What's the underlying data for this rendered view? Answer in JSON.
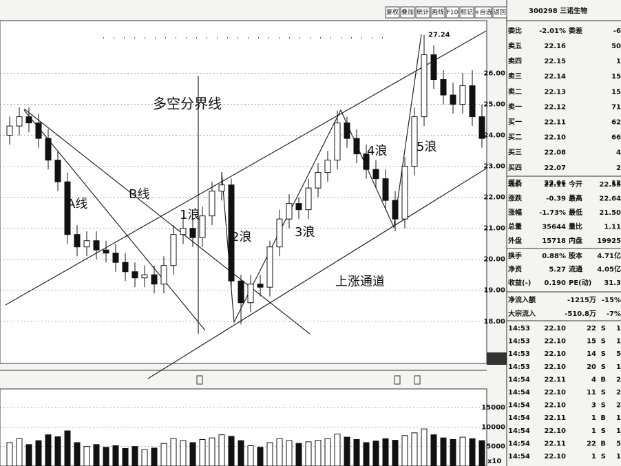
{
  "toolbar": [
    "复权",
    "叠加",
    "统计",
    "画线",
    "F10",
    "标记",
    "+自选",
    "返回"
  ],
  "chart_data": {
    "type": "candlestick",
    "open": [
      24.0,
      24.3,
      24.6,
      24.4,
      23.9,
      23.2,
      22.5,
      20.8,
      20.4,
      20.6,
      20.3,
      20.2,
      19.9,
      19.6,
      19.4,
      19.5,
      19.2,
      19.8,
      20.8,
      21.0,
      20.7,
      21.4,
      22.2,
      22.4,
      19.3,
      18.6,
      19.2,
      19.1,
      20.4,
      21.3,
      21.8,
      21.6,
      22.3,
      22.8,
      23.2,
      24.4,
      23.9,
      23.4,
      22.9,
      22.6,
      21.9,
      21.3,
      23.0,
      24.6,
      26.6,
      25.8,
      25.3,
      25.0,
      25.6,
      24.6
    ],
    "close": [
      24.3,
      24.6,
      24.4,
      23.9,
      23.2,
      22.5,
      20.8,
      20.4,
      20.6,
      20.3,
      20.2,
      19.9,
      19.6,
      19.4,
      19.5,
      19.2,
      19.8,
      20.8,
      21.0,
      20.7,
      21.4,
      22.2,
      22.4,
      19.3,
      18.6,
      19.2,
      19.1,
      20.4,
      21.3,
      21.8,
      21.6,
      22.3,
      22.8,
      23.2,
      24.4,
      23.9,
      23.4,
      22.9,
      22.6,
      21.9,
      21.3,
      23.0,
      24.6,
      26.6,
      25.8,
      25.3,
      25.0,
      25.6,
      24.6,
      23.9
    ],
    "high": [
      24.6,
      24.9,
      24.9,
      24.7,
      24.2,
      23.5,
      22.8,
      21.1,
      20.9,
      20.9,
      20.6,
      20.5,
      20.2,
      19.9,
      19.8,
      19.8,
      20.1,
      21.1,
      21.3,
      21.3,
      21.7,
      22.5,
      22.8,
      22.6,
      19.5,
      19.5,
      19.5,
      20.6,
      21.6,
      22.1,
      22.0,
      22.6,
      23.1,
      23.5,
      24.8,
      24.6,
      24.2,
      23.7,
      23.2,
      22.9,
      22.2,
      23.3,
      24.9,
      27.24,
      26.9,
      26.1,
      25.7,
      26.0,
      26.1,
      25.0
    ],
    "low": [
      23.7,
      24.0,
      24.1,
      23.6,
      22.9,
      22.2,
      20.5,
      20.1,
      20.1,
      20.0,
      19.9,
      19.6,
      19.3,
      19.1,
      19.1,
      18.9,
      18.9,
      19.5,
      20.5,
      20.4,
      20.4,
      21.1,
      21.9,
      19.0,
      17.9,
      18.3,
      18.8,
      18.8,
      20.1,
      21.0,
      21.3,
      21.3,
      22.0,
      22.5,
      22.9,
      23.6,
      23.1,
      22.6,
      22.3,
      21.6,
      20.9,
      21.0,
      22.7,
      24.3,
      25.5,
      25.0,
      24.7,
      24.7,
      24.3,
      23.6
    ],
    "ylim": [
      16.64,
      27.7
    ],
    "yticks": [
      {
        "value": 26,
        "label": "26.00"
      },
      {
        "value": 25,
        "label": "25.00"
      },
      {
        "value": 24,
        "label": "24.00"
      },
      {
        "value": 23,
        "label": "23.00"
      },
      {
        "value": 22,
        "label": "22.00"
      },
      {
        "value": 21,
        "label": "21.00"
      },
      {
        "value": 20,
        "label": "20.00"
      },
      {
        "value": 19,
        "label": "19.00"
      },
      {
        "value": 18,
        "label": "18.00"
      }
    ],
    "peak_label": "27.24",
    "volume": [
      6000,
      7000,
      5500,
      6500,
      8000,
      7500,
      9000,
      6000,
      5000,
      5500,
      4800,
      5200,
      4500,
      5000,
      4200,
      4600,
      5800,
      7000,
      6500,
      6000,
      6800,
      7200,
      8000,
      7600,
      6500,
      5200,
      4800,
      6000,
      7000,
      6500,
      5800,
      6200,
      6600,
      7000,
      8200,
      7400,
      6800,
      6000,
      6400,
      7000,
      6600,
      7800,
      8500,
      9500,
      8000,
      7200,
      6800,
      7400,
      7000,
      6500
    ],
    "volume_ylim": [
      0,
      19760
    ],
    "volume_yticks": [
      15000,
      10000,
      5000
    ],
    "volume_unit": "x10",
    "annotations": [
      "多空分界线",
      "A线",
      "B线",
      "1浪",
      "2浪",
      "3浪",
      "4浪",
      "5浪",
      "上涨通道"
    ]
  },
  "panel": {
    "header": "300298 三诺生物",
    "ratio_row": [
      "委比",
      "-2.01%",
      "委差",
      "-6"
    ],
    "book": [
      [
        "卖五",
        "22.16",
        "50"
      ],
      [
        "卖四",
        "22.15",
        "1"
      ],
      [
        "卖三",
        "22.14",
        "15"
      ],
      [
        "卖二",
        "22.13",
        "15"
      ],
      [
        "卖一",
        "22.12",
        "71"
      ],
      [
        "买一",
        "22.11",
        "62"
      ],
      [
        "买二",
        "22.10",
        "66"
      ],
      [
        "买三",
        "22.08",
        "4"
      ],
      [
        "买四",
        "22.07",
        "2"
      ],
      [
        "买五",
        "22.06",
        "12"
      ]
    ],
    "stats": [
      [
        "现价",
        "22.11",
        "今开",
        "22.55"
      ],
      [
        "涨跌",
        "-0.39",
        "最高",
        "22.64"
      ],
      [
        "涨幅",
        "-1.73%",
        "最低",
        "21.50"
      ],
      [
        "总量",
        "35644",
        "量比",
        "1.11"
      ],
      [
        "外盘",
        "15718",
        "内盘",
        "19925"
      ],
      [
        "换手",
        "0.88%",
        "股本",
        "4.71亿"
      ],
      [
        "净资",
        "5.27",
        "流通",
        "4.05亿"
      ],
      [
        "收益(-)",
        "0.190",
        "PE(动)",
        "31.3"
      ]
    ],
    "flows": [
      [
        "净流入额",
        "-1215万",
        "-15%"
      ],
      [
        "大宗流入",
        "-510.8万",
        "-7%"
      ]
    ],
    "trades": [
      [
        "14:53",
        "22.10",
        "22",
        "S",
        "1"
      ],
      [
        "14:53",
        "22.10",
        "15",
        "S",
        "1"
      ],
      [
        "14:53",
        "22.10",
        "14",
        "S",
        "5"
      ],
      [
        "14:53",
        "22.10",
        "20",
        "S",
        "1"
      ],
      [
        "14:54",
        "22.11",
        "4",
        "B",
        "2"
      ],
      [
        "14:54",
        "22.10",
        "11",
        "S",
        "2"
      ],
      [
        "14:54",
        "22.10",
        "3",
        "S",
        "2"
      ],
      [
        "14:54",
        "22.11",
        "1",
        "B",
        "1"
      ],
      [
        "14:54",
        "22.10",
        "1",
        "S",
        "1"
      ],
      [
        "14:54",
        "22.11",
        "22",
        "B",
        "5"
      ],
      [
        "14:54",
        "22.10",
        "1",
        "S",
        "1"
      ]
    ]
  }
}
